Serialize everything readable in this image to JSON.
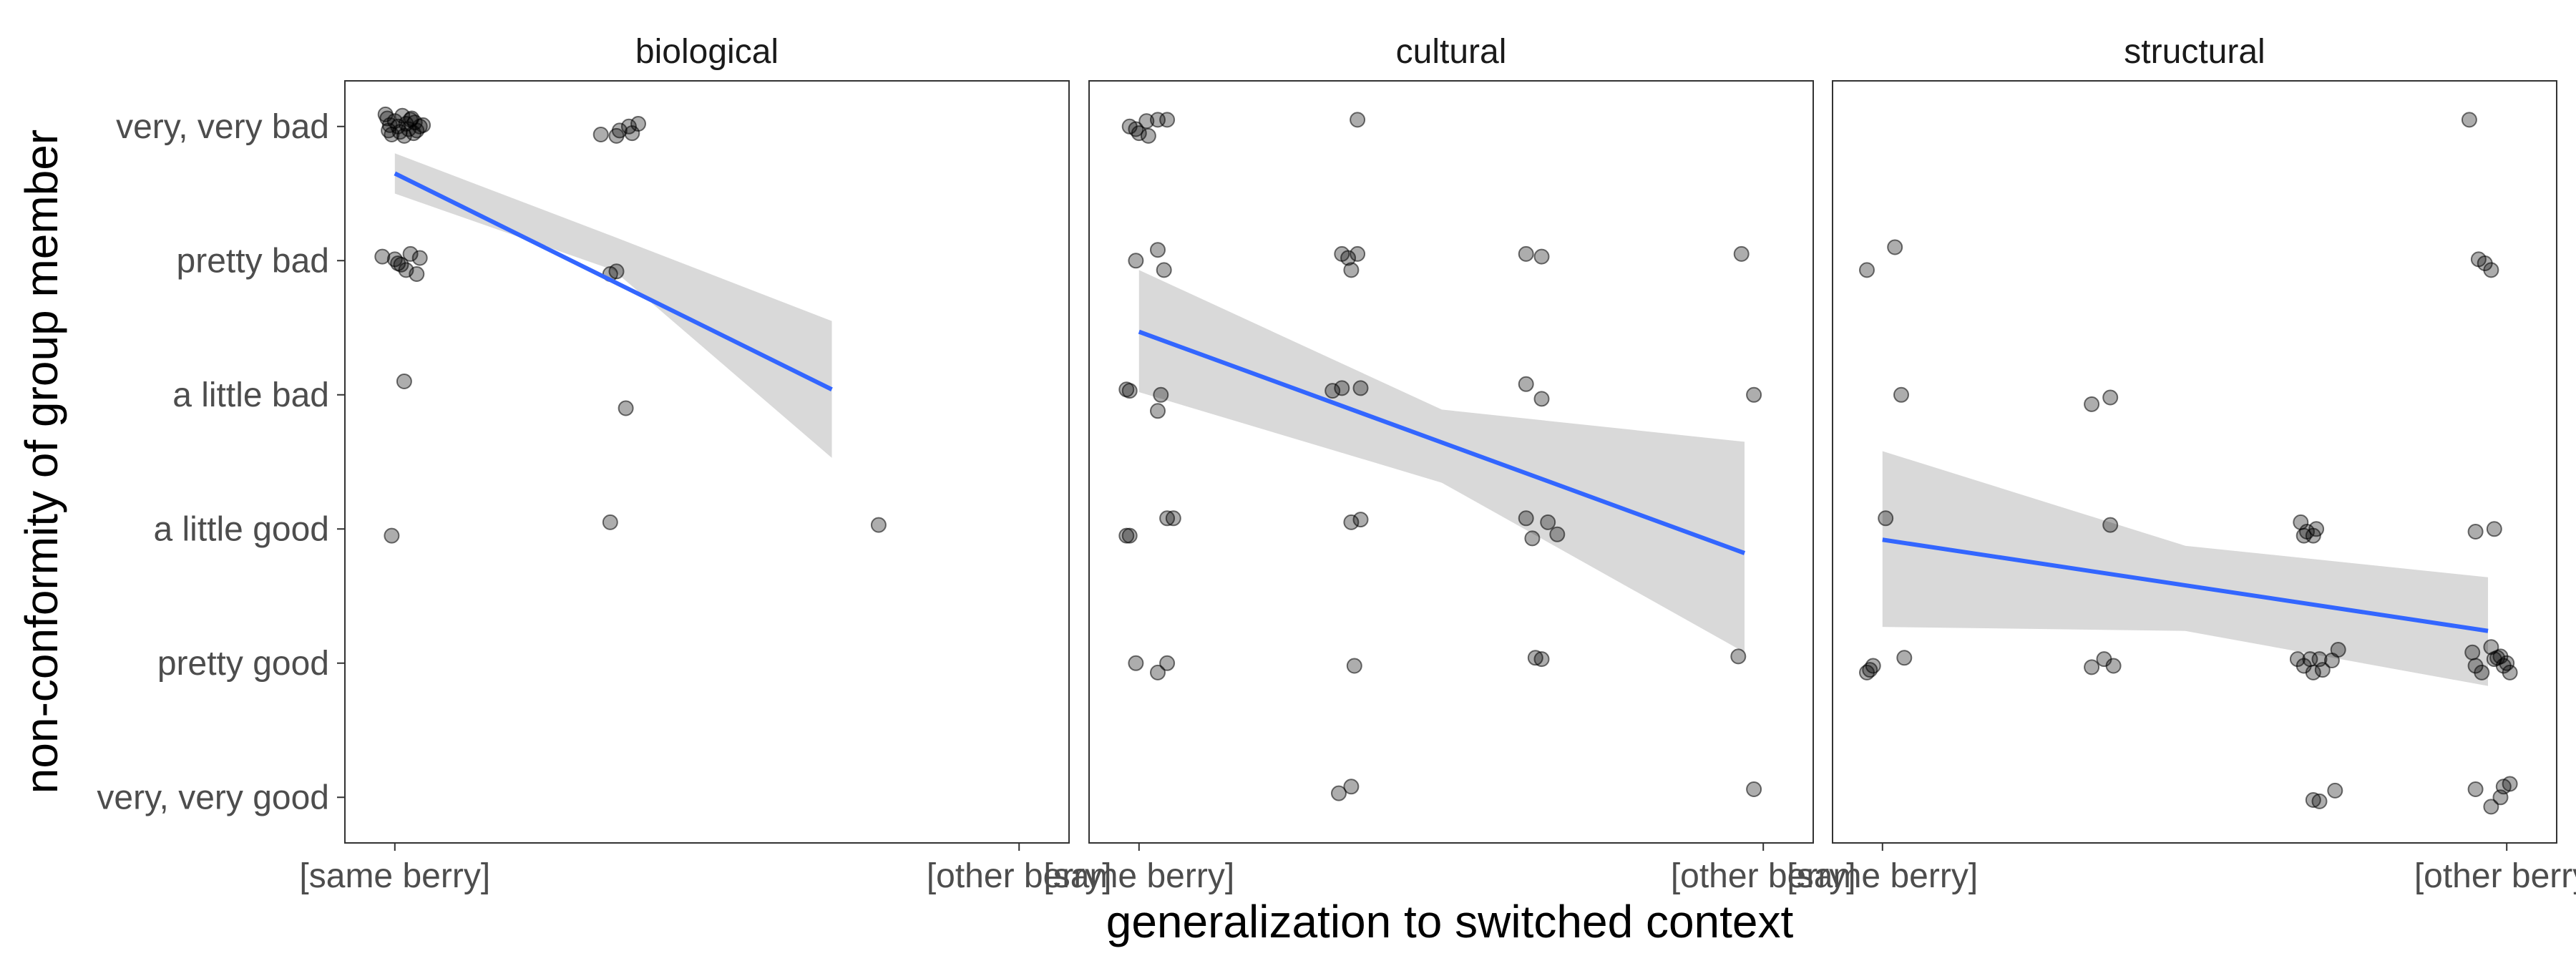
{
  "chart_data": {
    "type": "scatter",
    "facet_by": "context",
    "xlabel": "generalization to switched context",
    "ylabel": "non-conformity of group member",
    "x_ticks": [
      "[same berry]",
      "[other berry]"
    ],
    "y_levels": [
      "very, very good",
      "pretty good",
      "a little good",
      "a little bad",
      "pretty bad",
      "very, very bad"
    ],
    "y_levels_numeric": [
      1,
      2,
      3,
      4,
      5,
      6
    ],
    "xlim": [
      -0.08,
      1.08
    ],
    "ylim": [
      0.66,
      6.34
    ],
    "grid": false,
    "legend": "none",
    "colors": {
      "points": "#000000",
      "fit_line": "#3366FF",
      "ribbon": "#D9D9D9"
    },
    "fit": "linear regression with 95% confidence band",
    "panels": [
      {
        "title": "biological",
        "points": [
          [
            -0.015,
            6.09
          ],
          [
            -0.012,
            6.06
          ],
          [
            0.0,
            6.04
          ],
          [
            0.012,
            6.08
          ],
          [
            0.025,
            6.05
          ],
          [
            -0.008,
            6.01
          ],
          [
            0.005,
            6.0
          ],
          [
            0.018,
            6.02
          ],
          [
            0.032,
            6.03
          ],
          [
            0.045,
            6.01
          ],
          [
            -0.01,
            5.97
          ],
          [
            0.008,
            5.96
          ],
          [
            0.022,
            5.98
          ],
          [
            0.035,
            5.97
          ],
          [
            -0.005,
            5.94
          ],
          [
            0.015,
            5.93
          ],
          [
            0.03,
            5.95
          ],
          [
            0.04,
            6.0
          ],
          [
            0.027,
            6.06
          ],
          [
            0.33,
            5.94
          ],
          [
            0.355,
            5.93
          ],
          [
            0.36,
            5.97
          ],
          [
            0.38,
            5.95
          ],
          [
            0.39,
            6.02
          ],
          [
            0.375,
            6.0
          ],
          [
            -0.02,
            5.03
          ],
          [
            0.0,
            5.01
          ],
          [
            0.01,
            4.97
          ],
          [
            0.025,
            5.05
          ],
          [
            0.04,
            5.02
          ],
          [
            0.018,
            4.93
          ],
          [
            0.035,
            4.9
          ],
          [
            0.005,
            4.98
          ],
          [
            0.345,
            4.9
          ],
          [
            0.355,
            4.92
          ],
          [
            0.015,
            4.1
          ],
          [
            0.37,
            3.9
          ],
          [
            -0.005,
            2.95
          ],
          [
            0.345,
            3.05
          ],
          [
            0.775,
            3.03
          ]
        ],
        "fit": {
          "x": [
            0,
            0.7
          ],
          "y": [
            5.65,
            4.04
          ],
          "ci_low": [
            5.5,
            3.53
          ],
          "ci_high": [
            5.8,
            4.55
          ],
          "ci_mid": [
            5.57,
            4.29
          ],
          "ci_mid_high": [
            5.73,
            4.63
          ]
        }
      },
      {
        "title": "cultural",
        "points": [
          [
            -0.015,
            6.0
          ],
          [
            0.0,
            5.95
          ],
          [
            0.015,
            5.93
          ],
          [
            0.03,
            6.05
          ],
          [
            0.045,
            6.05
          ],
          [
            0.012,
            6.04
          ],
          [
            -0.005,
            5.98
          ],
          [
            0.35,
            6.05
          ],
          [
            -0.005,
            5.0
          ],
          [
            0.03,
            5.08
          ],
          [
            0.04,
            4.93
          ],
          [
            0.325,
            5.05
          ],
          [
            0.335,
            5.02
          ],
          [
            0.34,
            4.93
          ],
          [
            0.35,
            5.05
          ],
          [
            0.62,
            5.05
          ],
          [
            0.645,
            5.03
          ],
          [
            0.965,
            5.05
          ],
          [
            -0.02,
            4.04
          ],
          [
            -0.015,
            4.03
          ],
          [
            0.035,
            4.0
          ],
          [
            0.03,
            3.88
          ],
          [
            0.31,
            4.03
          ],
          [
            0.325,
            4.05
          ],
          [
            0.355,
            4.05
          ],
          [
            0.62,
            4.08
          ],
          [
            0.645,
            3.97
          ],
          [
            0.985,
            4.0
          ],
          [
            -0.02,
            2.95
          ],
          [
            -0.015,
            2.95
          ],
          [
            0.045,
            3.08
          ],
          [
            0.055,
            3.08
          ],
          [
            0.34,
            3.05
          ],
          [
            0.355,
            3.07
          ],
          [
            0.62,
            3.08
          ],
          [
            0.63,
            2.93
          ],
          [
            0.655,
            3.05
          ],
          [
            0.67,
            2.96
          ],
          [
            -0.005,
            2.0
          ],
          [
            0.03,
            1.93
          ],
          [
            0.045,
            2.0
          ],
          [
            0.345,
            1.98
          ],
          [
            0.635,
            2.04
          ],
          [
            0.645,
            2.03
          ],
          [
            0.96,
            2.05
          ],
          [
            0.32,
            1.03
          ],
          [
            0.34,
            1.08
          ],
          [
            0.985,
            1.06
          ]
        ],
        "fit": {
          "x": [
            0,
            0.97
          ],
          "y": [
            4.47,
            2.82
          ],
          "ci_low": [
            4.02,
            2.08
          ],
          "ci_high": [
            4.93,
            3.65
          ],
          "ci_mid": [
            4.16,
            2.53
          ],
          "ci_mid_high": [
            4.55,
            3.23
          ]
        }
      },
      {
        "title": "structural",
        "points": [
          [
            -0.025,
            4.93
          ],
          [
            0.02,
            5.1
          ],
          [
            0.03,
            4.0
          ],
          [
            0.005,
            3.08
          ],
          [
            -0.02,
            1.95
          ],
          [
            -0.025,
            1.93
          ],
          [
            -0.015,
            1.98
          ],
          [
            0.035,
            2.04
          ],
          [
            0.335,
            3.93
          ],
          [
            0.365,
            3.98
          ],
          [
            0.365,
            3.03
          ],
          [
            0.335,
            1.97
          ],
          [
            0.355,
            2.03
          ],
          [
            0.37,
            1.98
          ],
          [
            0.67,
            3.05
          ],
          [
            0.675,
            2.95
          ],
          [
            0.68,
            2.98
          ],
          [
            0.69,
            2.95
          ],
          [
            0.695,
            3.0
          ],
          [
            0.665,
            2.03
          ],
          [
            0.675,
            1.98
          ],
          [
            0.685,
            2.03
          ],
          [
            0.69,
            1.93
          ],
          [
            0.7,
            2.03
          ],
          [
            0.705,
            1.95
          ],
          [
            0.72,
            2.02
          ],
          [
            0.73,
            2.1
          ],
          [
            0.69,
            0.98
          ],
          [
            0.7,
            0.97
          ],
          [
            0.725,
            1.05
          ],
          [
            0.94,
            6.05
          ],
          [
            0.955,
            5.01
          ],
          [
            0.965,
            4.98
          ],
          [
            0.975,
            4.93
          ],
          [
            0.95,
            2.98
          ],
          [
            0.98,
            3.0
          ],
          [
            0.945,
            2.08
          ],
          [
            0.95,
            1.98
          ],
          [
            0.96,
            1.93
          ],
          [
            0.975,
            2.12
          ],
          [
            0.98,
            2.03
          ],
          [
            0.99,
            2.05
          ],
          [
            0.995,
            1.98
          ],
          [
            1.0,
            2.0
          ],
          [
            1.005,
            1.93
          ],
          [
            0.985,
            2.04
          ],
          [
            0.95,
            1.06
          ],
          [
            0.975,
            0.93
          ],
          [
            0.99,
            1.0
          ],
          [
            0.995,
            1.08
          ],
          [
            1.005,
            1.1
          ]
        ],
        "fit": {
          "x": [
            0,
            0.97
          ],
          "y": [
            2.92,
            2.24
          ],
          "ci_low": [
            2.27,
            1.83
          ],
          "ci_high": [
            3.58,
            2.64
          ],
          "ci_mid": [
            2.35,
            2.13
          ],
          "ci_mid_high": [
            3.38,
            2.37
          ]
        }
      }
    ]
  }
}
